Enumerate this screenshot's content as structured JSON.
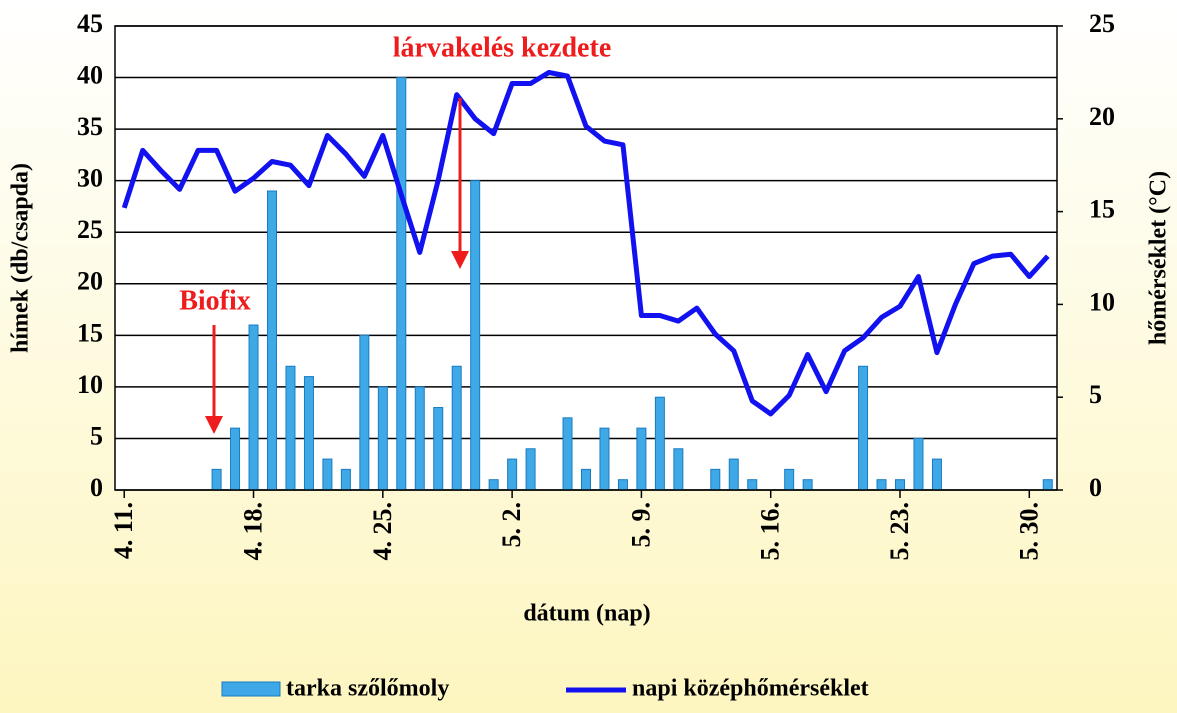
{
  "chart_data": {
    "type": "bar_line",
    "x_label": "dátum (nap)",
    "y_label": "hímek (db/csapda)",
    "y2_label": "hőmérséklet (°C)",
    "annotations": [
      "Biofix",
      "lárvakelés kezdete"
    ],
    "categories": [
      "4. 11.",
      null,
      null,
      null,
      null,
      null,
      null,
      "4. 18.",
      null,
      null,
      null,
      null,
      null,
      null,
      "4. 25.",
      null,
      null,
      null,
      null,
      null,
      null,
      "5. 2.",
      null,
      null,
      null,
      null,
      null,
      null,
      "5. 9.",
      null,
      null,
      null,
      null,
      null,
      null,
      "5. 16.",
      null,
      null,
      null,
      null,
      null,
      null,
      "5. 23.",
      null,
      null,
      null,
      null,
      null,
      null,
      "5. 30.",
      null
    ],
    "series": [
      {
        "name": "tarka szőlőmoly",
        "color": "#3fa9e8",
        "kind": "bar",
        "values": [
          0,
          0,
          0,
          0,
          0,
          2,
          6,
          16,
          29,
          12,
          11,
          3,
          2,
          15,
          10,
          40,
          10,
          8,
          12,
          30,
          1,
          3,
          4,
          0,
          7,
          2,
          6,
          1,
          6,
          9,
          4,
          0,
          2,
          3,
          1,
          0,
          2,
          1,
          0,
          0,
          12,
          1,
          1,
          5,
          3,
          0,
          0,
          0,
          0,
          0,
          1
        ]
      },
      {
        "name": "napi középhőmérséklet",
        "color": "#1212f0",
        "kind": "line",
        "axis": "y2",
        "values": [
          15.2,
          18.3,
          17.2,
          16.2,
          18.3,
          18.3,
          16.1,
          16.8,
          17.7,
          17.5,
          16.4,
          19.1,
          18.1,
          16.9,
          19.1,
          15.9,
          12.8,
          16.7,
          21.3,
          20.0,
          19.2,
          21.9,
          21.9,
          22.5,
          22.3,
          19.6,
          18.8,
          18.6,
          9.4,
          9.4,
          9.1,
          9.8,
          8.4,
          7.5,
          4.8,
          4.1,
          5.1,
          7.3,
          5.3,
          7.5,
          8.2,
          9.3,
          9.9,
          11.5,
          7.4,
          10.0,
          12.2,
          12.6,
          12.7,
          11.5,
          12.6
        ]
      }
    ],
    "ylim": [
      0,
      45
    ],
    "yticks": [
      0,
      5,
      10,
      15,
      20,
      25,
      30,
      35,
      40,
      45
    ],
    "y2lim": [
      0,
      25
    ],
    "y2ticks": [
      0,
      5,
      10,
      15,
      20,
      25
    ],
    "grid": true
  }
}
